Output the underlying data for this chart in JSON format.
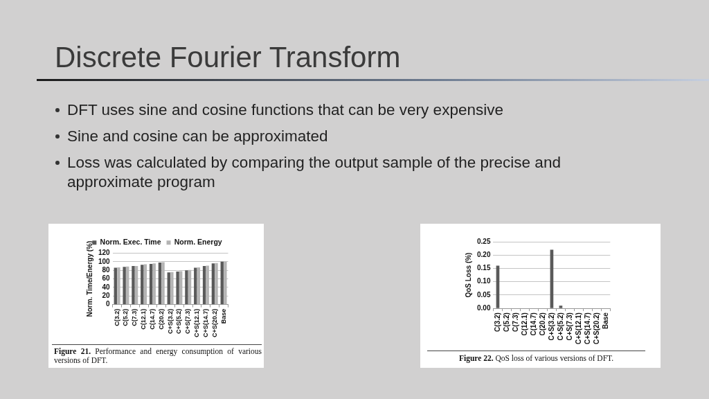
{
  "chart_data": [
    {
      "type": "other",
      "title": "Discrete Fourier Transform",
      "annotations": [
        "DFT uses sine and cosine functions that can be very expensive",
        "Sine and cosine can be approximated",
        "Loss was calculated by comparing the output sample of the precise and approximate program"
      ]
    },
    {
      "type": "bar",
      "categories": [
        "C(3.2)",
        "C(5.2)",
        "C(7.3)",
        "C(12.1)",
        "C(14.7)",
        "C(20.2)",
        "C+S(3.2)",
        "C+S(5.2)",
        "C+S(7.3)",
        "C+S(12.1)",
        "C+S(14.7)",
        "C+S(20.2)",
        "Base"
      ],
      "series": [
        {
          "name": "Norm. Exec. Time",
          "color": "#5a5a5a",
          "values": [
            86,
            88,
            90,
            93,
            95,
            98,
            75,
            77,
            80,
            86,
            90,
            96,
            100
          ]
        },
        {
          "name": "Norm. Energy",
          "color": "#b4b4b4",
          "values": [
            87,
            89,
            90,
            94,
            96,
            99,
            76,
            78,
            81,
            87,
            91,
            97,
            100
          ]
        }
      ],
      "ylabel": "Norm. Time/Energy (%)",
      "ylim": [
        0,
        120
      ],
      "yticks": [
        0,
        20,
        40,
        60,
        80,
        100,
        120
      ],
      "grid": "y",
      "legend": "top",
      "annotations": [
        "Figure 21. Performance and energy consumption of various versions of DFT."
      ]
    },
    {
      "type": "bar",
      "categories": [
        "C(3.2)",
        "C(5.2)",
        "C(7.3)",
        "C(12.1)",
        "C(14.7)",
        "C(20.2)",
        "C+S(3.2)",
        "C+S(5.2)",
        "C+S(7.3)",
        "C+S(12.1)",
        "C+S(14.7)",
        "C+S(20.2)",
        "Base"
      ],
      "values": [
        0.16,
        0,
        0,
        0,
        0,
        0,
        0.22,
        0.01,
        0,
        0,
        0,
        0,
        0
      ],
      "color": "#5a5a5a",
      "ylabel": "QoS Loss (%)",
      "ylim": [
        0,
        0.25
      ],
      "yticks": [
        {
          "value": 0,
          "label": "0.00"
        },
        0.05,
        {
          "value": 0.1,
          "label": "0.10"
        },
        0.15,
        {
          "value": 0.2,
          "label": "0.20"
        },
        0.25
      ],
      "grid": "y",
      "annotations": [
        "Figure 22. QoS loss of various versions of DFT."
      ]
    }
  ]
}
